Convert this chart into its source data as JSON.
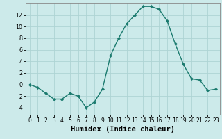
{
  "x": [
    0,
    1,
    2,
    3,
    4,
    5,
    6,
    7,
    8,
    9,
    10,
    11,
    12,
    13,
    14,
    15,
    16,
    17,
    18,
    19,
    20,
    21,
    22,
    23
  ],
  "y": [
    0,
    -0.5,
    -1.5,
    -2.5,
    -2.5,
    -1.5,
    -2.0,
    -4.0,
    -3.0,
    -0.8,
    5.0,
    8.0,
    10.5,
    12.0,
    13.5,
    13.5,
    13.0,
    11.0,
    7.0,
    3.5,
    1.0,
    0.8,
    -1.0,
    -0.8
  ],
  "line_color": "#1a7a6e",
  "marker": "D",
  "marker_size": 2.2,
  "linewidth": 1.0,
  "bg_color": "#cceaea",
  "grid_color": "#aed4d4",
  "xlabel": "Humidex (Indice chaleur)",
  "xlim": [
    -0.5,
    23.5
  ],
  "ylim": [
    -5.2,
    14.0
  ],
  "yticks": [
    -4,
    -2,
    0,
    2,
    4,
    6,
    8,
    10,
    12
  ],
  "xticks": [
    0,
    1,
    2,
    3,
    4,
    5,
    6,
    7,
    8,
    9,
    10,
    11,
    12,
    13,
    14,
    15,
    16,
    17,
    18,
    19,
    20,
    21,
    22,
    23
  ],
  "tick_label_fontsize": 5.8,
  "xlabel_fontsize": 7.5,
  "spine_color": "#888888"
}
